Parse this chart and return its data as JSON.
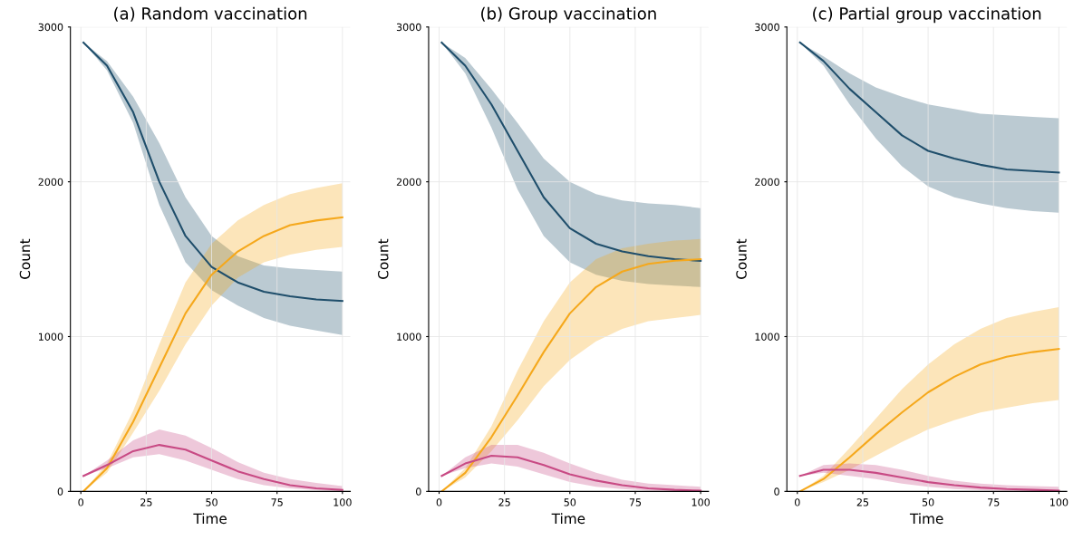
{
  "chart_data": [
    {
      "type": "line",
      "title": "(a) Random vaccination",
      "xlabel": "Time",
      "ylabel": "Count",
      "x": [
        1,
        10,
        20,
        30,
        40,
        50,
        60,
        70,
        80,
        90,
        100
      ],
      "xlim": [
        -4,
        103
      ],
      "xticks": [
        0,
        25,
        50,
        75,
        100
      ],
      "ylim": [
        0,
        3000
      ],
      "yticks": [
        0,
        1000,
        2000,
        3000
      ],
      "grid": true,
      "series": [
        {
          "color": "#1f4e6b",
          "values": [
            2900,
            2750,
            2450,
            2000,
            1650,
            1450,
            1350,
            1290,
            1260,
            1240,
            1230
          ],
          "upper": [
            2900,
            2780,
            2550,
            2250,
            1900,
            1650,
            1520,
            1460,
            1440,
            1430,
            1420
          ],
          "lower": [
            2900,
            2720,
            2380,
            1850,
            1480,
            1300,
            1200,
            1120,
            1070,
            1040,
            1010
          ]
        },
        {
          "color": "#f5a81c",
          "values": [
            0,
            150,
            450,
            800,
            1150,
            1400,
            1550,
            1650,
            1720,
            1750,
            1770
          ],
          "upper": [
            0,
            180,
            520,
            950,
            1350,
            1600,
            1750,
            1850,
            1920,
            1960,
            1990
          ],
          "lower": [
            0,
            120,
            380,
            650,
            950,
            1200,
            1380,
            1480,
            1530,
            1560,
            1580
          ]
        },
        {
          "color": "#c84a84",
          "values": [
            100,
            170,
            260,
            300,
            270,
            200,
            130,
            80,
            40,
            20,
            10
          ],
          "upper": [
            100,
            200,
            330,
            400,
            360,
            280,
            190,
            120,
            80,
            55,
            35
          ],
          "lower": [
            100,
            150,
            220,
            240,
            200,
            140,
            80,
            40,
            20,
            8,
            0
          ]
        }
      ]
    },
    {
      "type": "line",
      "title": "(b) Group vaccination",
      "xlabel": "Time",
      "ylabel": "Count",
      "x": [
        1,
        10,
        20,
        30,
        40,
        50,
        60,
        70,
        80,
        90,
        100
      ],
      "xlim": [
        -4,
        103
      ],
      "xticks": [
        0,
        25,
        50,
        75,
        100
      ],
      "ylim": [
        0,
        3000
      ],
      "yticks": [
        0,
        1000,
        2000,
        3000
      ],
      "grid": true,
      "series": [
        {
          "color": "#1f4e6b",
          "values": [
            2900,
            2750,
            2500,
            2200,
            1900,
            1700,
            1600,
            1550,
            1520,
            1500,
            1490
          ],
          "upper": [
            2900,
            2800,
            2600,
            2380,
            2150,
            2000,
            1920,
            1880,
            1860,
            1850,
            1830
          ],
          "lower": [
            2900,
            2700,
            2350,
            1950,
            1650,
            1480,
            1400,
            1360,
            1340,
            1330,
            1320
          ]
        },
        {
          "color": "#f5a81c",
          "values": [
            0,
            120,
            350,
            620,
            900,
            1150,
            1320,
            1420,
            1470,
            1490,
            1500
          ],
          "upper": [
            0,
            150,
            420,
            780,
            1100,
            1350,
            1500,
            1570,
            1600,
            1620,
            1630
          ],
          "lower": [
            0,
            90,
            260,
            460,
            680,
            850,
            970,
            1050,
            1100,
            1120,
            1140
          ]
        },
        {
          "color": "#c84a84",
          "values": [
            100,
            180,
            230,
            220,
            170,
            110,
            70,
            40,
            20,
            10,
            5
          ],
          "upper": [
            100,
            220,
            300,
            300,
            250,
            180,
            120,
            75,
            50,
            40,
            30
          ],
          "lower": [
            100,
            150,
            180,
            160,
            110,
            60,
            30,
            15,
            5,
            2,
            0
          ]
        }
      ]
    },
    {
      "type": "line",
      "title": "(c) Partial group vaccination",
      "xlabel": "Time",
      "ylabel": "Count",
      "x": [
        1,
        10,
        20,
        30,
        40,
        50,
        60,
        70,
        80,
        90,
        100
      ],
      "xlim": [
        -4,
        103
      ],
      "xticks": [
        0,
        25,
        50,
        75,
        100
      ],
      "ylim": [
        0,
        3000
      ],
      "yticks": [
        0,
        1000,
        2000,
        3000
      ],
      "grid": true,
      "series": [
        {
          "color": "#1f4e6b",
          "values": [
            2900,
            2780,
            2600,
            2450,
            2300,
            2200,
            2150,
            2110,
            2080,
            2070,
            2060
          ],
          "upper": [
            2900,
            2810,
            2700,
            2610,
            2550,
            2500,
            2470,
            2440,
            2430,
            2420,
            2410
          ],
          "lower": [
            2900,
            2750,
            2500,
            2280,
            2100,
            1970,
            1900,
            1860,
            1830,
            1810,
            1800
          ]
        },
        {
          "color": "#f5a81c",
          "values": [
            0,
            80,
            220,
            370,
            510,
            640,
            740,
            820,
            870,
            900,
            920
          ],
          "upper": [
            0,
            100,
            280,
            470,
            660,
            820,
            950,
            1050,
            1120,
            1160,
            1190
          ],
          "lower": [
            0,
            60,
            140,
            230,
            320,
            400,
            460,
            510,
            540,
            570,
            590
          ]
        },
        {
          "color": "#c84a84",
          "values": [
            100,
            140,
            140,
            120,
            90,
            60,
            40,
            25,
            15,
            10,
            5
          ],
          "upper": [
            100,
            170,
            180,
            170,
            140,
            100,
            70,
            50,
            40,
            35,
            30
          ],
          "lower": [
            100,
            120,
            100,
            80,
            50,
            30,
            15,
            8,
            4,
            2,
            0
          ]
        }
      ]
    }
  ]
}
